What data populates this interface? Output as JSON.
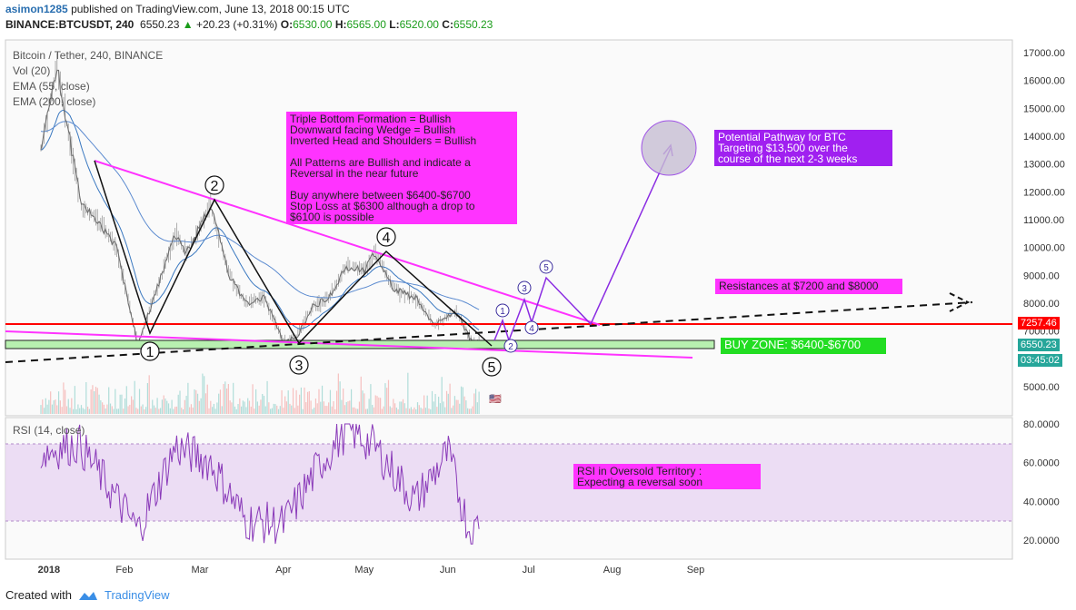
{
  "header": {
    "user": "asimon1285",
    "published": "published on TradingView.com, June 13, 2018 00:15 UTC",
    "symbol": "BINANCE:BTCUSDT, 240",
    "last": "6550.23",
    "arrow": "▲",
    "change": "+20.23 (+0.31%)",
    "o_label": "O:",
    "o_val": "6530.00",
    "h_label": "H:",
    "h_val": "6565.00",
    "l_label": "L:",
    "l_val": "6520.00",
    "c_label": "C:",
    "c_val": "6550.23"
  },
  "legend": {
    "title": "Bitcoin / Tether, 240, BINANCE",
    "vol": "Vol (20)",
    "ema55": "EMA (55, close)",
    "ema200": "EMA (200, close)",
    "rsi": "RSI (14, close)"
  },
  "notes": {
    "patterns": "Triple Bottom Formation = Bullish\nDownward facing Wedge = Bullish\nInverted Head and Shoulders = Bullish\n\nAll Patterns are Bullish and indicate a\nReversal in the near future\n\nBuy anywhere between $6400-$6700\nStop Loss at $6300 although a drop to\n$6100 is possible",
    "pathway": "Potential Pathway for BTC\nTargeting $13,500 over the\ncourse of the next 2-3 weeks",
    "resistance": "Resistances at $7200 and $8000",
    "buyzone": "BUY ZONE: $6400-$6700",
    "rsi": "RSI in Oversold Territory :\nExpecting a reversal soon"
  },
  "price_labels": {
    "red": "7257.46",
    "last": "6550.23",
    "countdown": "03:45:02"
  },
  "colors": {
    "up": "#26a69a",
    "down": "#ef5350",
    "trend": "#ff33ff",
    "resistance": "#ff0000",
    "ema55": "#3a78c0",
    "ema200": "#5c8bd0",
    "rsi": "#8a3ab9",
    "pathway": "#8a2be2",
    "wave": "#3a2c9c"
  },
  "footer": {
    "created": "Created with",
    "brand": "TradingView"
  },
  "chart_data": [
    {
      "type": "line",
      "title": "Bitcoin / Tether, 240, BINANCE",
      "xlabel": "",
      "ylabel": "",
      "x_ticks": [
        "2018",
        "Feb",
        "Mar",
        "Apr",
        "May",
        "Jun",
        "Jul",
        "Aug",
        "Sep"
      ],
      "y_ticks": [
        5000,
        6000,
        7000,
        8000,
        9000,
        10000,
        11000,
        12000,
        13000,
        14000,
        15000,
        16000,
        17000
      ],
      "y_tick_labels": [
        "5000.00",
        "6000.00",
        "7000.00",
        "8000.00",
        "9000.00",
        "10000.00",
        "11000.00",
        "12000.00",
        "13000.00",
        "14000.00",
        "15000.00",
        "16000.00",
        "17000.00"
      ],
      "ylim": [
        4300,
        17500
      ],
      "series": [
        {
          "x": [
            "2018-01-01",
            "2018-01-07",
            "2018-01-16",
            "2018-01-22",
            "2018-01-29",
            "2018-02-06",
            "2018-02-13",
            "2018-02-20",
            "2018-02-24",
            "2018-03-05",
            "2018-03-12",
            "2018-03-18",
            "2018-03-25",
            "2018-04-01",
            "2018-04-06",
            "2018-04-12",
            "2018-04-18",
            "2018-04-24",
            "2018-05-01",
            "2018-05-05",
            "2018-05-12",
            "2018-05-20",
            "2018-05-27",
            "2018-06-04",
            "2018-06-10",
            "2018-06-13"
          ],
          "values": [
            13500,
            16500,
            11500,
            11000,
            10000,
            6500,
            8500,
            10500,
            9800,
            11500,
            9000,
            8000,
            8200,
            6600,
            6800,
            7900,
            8200,
            9300,
            9200,
            9800,
            8500,
            8200,
            7200,
            7700,
            6600,
            6550
          ]
        }
      ],
      "annotations": {
        "wave_a": [
          "1",
          "2",
          "3",
          "4",
          "5"
        ],
        "wave_b": [
          "1",
          "2",
          "3",
          "4",
          "5"
        ],
        "resistance_level": 7257.46,
        "buy_zone": [
          6400,
          6700
        ]
      }
    },
    {
      "type": "line",
      "title": "RSI (14, close)",
      "y_ticks": [
        20,
        40,
        60,
        80
      ],
      "y_tick_labels": [
        "20.0000",
        "40.0000",
        "60.0000",
        "80.0000"
      ],
      "ylim": [
        15,
        82
      ],
      "band": [
        30,
        70
      ],
      "series": [
        {
          "x": [
            "2018-01-01",
            "2018-01-15",
            "2018-02-06",
            "2018-02-20",
            "2018-03-05",
            "2018-03-18",
            "2018-04-01",
            "2018-04-15",
            "2018-04-25",
            "2018-05-05",
            "2018-05-20",
            "2018-06-01",
            "2018-06-10",
            "2018-06-13"
          ],
          "values": [
            65,
            70,
            25,
            68,
            60,
            30,
            28,
            60,
            78,
            68,
            40,
            65,
            20,
            33
          ]
        }
      ]
    }
  ]
}
